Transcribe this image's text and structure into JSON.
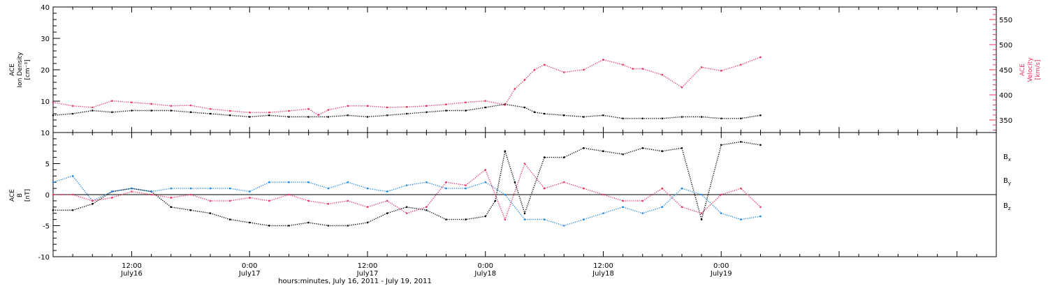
{
  "colors": {
    "black": "#000000",
    "pink": "#e8345e",
    "blue": "#1e87e6"
  },
  "chart_data": [
    {
      "type": "scatter",
      "title": "",
      "ylabel_lines": [
        "ACE",
        "Ion Density",
        "[cm⁻³]"
      ],
      "y2label_lines": [
        "ACE",
        "Velocity",
        "[km/s]"
      ],
      "ylim": [
        0,
        40
      ],
      "y_ticks": [
        "0",
        "10",
        "20",
        "30",
        "40"
      ],
      "y2lim": [
        325,
        575
      ],
      "y2_ticks": [
        "350",
        "400",
        "450",
        "500",
        "550"
      ],
      "series": [
        {
          "name": "",
          "axis": "left",
          "color": "#000000",
          "x": [
            4,
            6,
            8,
            10,
            12,
            14,
            16,
            18,
            20,
            22,
            24,
            26,
            28,
            30,
            32,
            34,
            36,
            38,
            40,
            42,
            44,
            46,
            48,
            50,
            52,
            53,
            54,
            56,
            58,
            60,
            62,
            64,
            66,
            68,
            70,
            72,
            74,
            76
          ],
          "y": [
            5.5,
            6,
            7,
            6.5,
            7,
            7,
            7,
            6.5,
            6,
            5.5,
            5,
            5.5,
            5,
            5,
            5,
            5.5,
            5,
            5.5,
            6,
            6.5,
            7,
            7,
            8,
            9,
            8,
            6.5,
            6,
            5.5,
            5,
            5.5,
            4.5,
            4.5,
            4.5,
            5,
            5,
            4.5,
            4.5,
            5.5
          ]
        },
        {
          "name": "",
          "axis": "right",
          "color": "#e8345e",
          "x": [
            4,
            6,
            8,
            10,
            12,
            14,
            16,
            18,
            20,
            22,
            24,
            26,
            28,
            30,
            31,
            32,
            34,
            36,
            38,
            40,
            42,
            44,
            46,
            48,
            50,
            51,
            52,
            53,
            54,
            56,
            58,
            60,
            62,
            63,
            64,
            66,
            68,
            70,
            72,
            74,
            76
          ],
          "y": [
            385,
            378,
            375,
            388,
            385,
            382,
            378,
            379,
            372,
            368,
            365,
            365,
            368,
            372,
            360,
            370,
            378,
            378,
            375,
            376,
            378,
            381,
            385,
            388,
            380,
            412,
            430,
            450,
            460,
            445,
            450,
            470,
            460,
            452,
            452,
            440,
            415,
            455,
            448,
            460,
            475
          ]
        }
      ]
    },
    {
      "type": "scatter",
      "title": "",
      "ylabel_lines": [
        "ACE",
        "B",
        "[nT]"
      ],
      "ylim": [
        -10,
        10
      ],
      "y_ticks": [
        "-10",
        "-5",
        "0",
        "5",
        "10"
      ],
      "xlabel": "hours:minutes, July 16, 2011 - July 19, 2011",
      "xlim": [
        4,
        100
      ],
      "x_unit": "hours since 0:00 July 16, 2011",
      "x_ticks": [
        {
          "x": 12,
          "time": "12:00",
          "date": "July16"
        },
        {
          "x": 24,
          "time": "0:00",
          "date": "July17"
        },
        {
          "x": 36,
          "time": "12:00",
          "date": "July17"
        },
        {
          "x": 48,
          "time": "0:00",
          "date": "July18"
        },
        {
          "x": 60,
          "time": "12:00",
          "date": "July18"
        },
        {
          "x": 72,
          "time": "0:00",
          "date": "July19"
        }
      ],
      "series": [
        {
          "name": "Bx",
          "color": "#000000",
          "x": [
            4,
            6,
            8,
            10,
            12,
            14,
            16,
            18,
            20,
            22,
            24,
            26,
            28,
            30,
            32,
            34,
            36,
            38,
            40,
            42,
            44,
            46,
            48,
            49,
            50,
            51,
            52,
            54,
            56,
            58,
            60,
            62,
            64,
            66,
            68,
            70,
            72,
            74,
            76
          ],
          "y": [
            -2.5,
            -2.5,
            -1.5,
            0.5,
            1,
            0.5,
            -2,
            -2.5,
            -3,
            -4,
            -4.5,
            -5,
            -5,
            -4.5,
            -5,
            -5,
            -4.5,
            -3,
            -2,
            -2.5,
            -4,
            -4,
            -3.5,
            -1,
            7,
            2,
            -3,
            6,
            6,
            7.5,
            7,
            6.5,
            7.5,
            7,
            7.5,
            -4,
            8,
            8.5,
            8
          ]
        },
        {
          "name": "By",
          "color": "#1e87e6",
          "x": [
            4,
            6,
            8,
            10,
            12,
            14,
            16,
            18,
            20,
            22,
            24,
            26,
            28,
            30,
            32,
            34,
            36,
            38,
            40,
            42,
            44,
            46,
            48,
            50,
            52,
            54,
            56,
            58,
            60,
            62,
            64,
            66,
            68,
            70,
            72,
            74,
            76
          ],
          "y": [
            2,
            3,
            -1,
            0.5,
            1,
            0.5,
            1,
            1,
            1,
            1,
            0.5,
            2,
            2,
            2,
            1,
            2,
            1,
            0.5,
            1.5,
            2,
            1,
            1,
            2,
            0,
            -4,
            -4,
            -5,
            -4,
            -3,
            -2,
            -3,
            -2,
            1,
            0,
            -3,
            -4,
            -3.5
          ]
        },
        {
          "name": "Bz",
          "color": "#e8345e",
          "x": [
            4,
            6,
            8,
            10,
            12,
            14,
            16,
            18,
            20,
            22,
            24,
            26,
            28,
            30,
            32,
            34,
            36,
            38,
            40,
            42,
            44,
            46,
            48,
            50,
            52,
            54,
            56,
            58,
            60,
            62,
            64,
            66,
            68,
            70,
            72,
            74,
            76
          ],
          "y": [
            0,
            0,
            -1,
            -0.5,
            0.5,
            0,
            -0.5,
            0,
            -1,
            -1,
            -0.5,
            -1,
            0,
            -1,
            -1.5,
            -1,
            -2,
            -1,
            -3,
            -2,
            2,
            1.5,
            4,
            -4,
            5,
            1,
            2,
            1,
            0,
            -1,
            -1,
            1,
            -2,
            -3,
            0,
            1,
            -2
          ]
        }
      ]
    }
  ]
}
